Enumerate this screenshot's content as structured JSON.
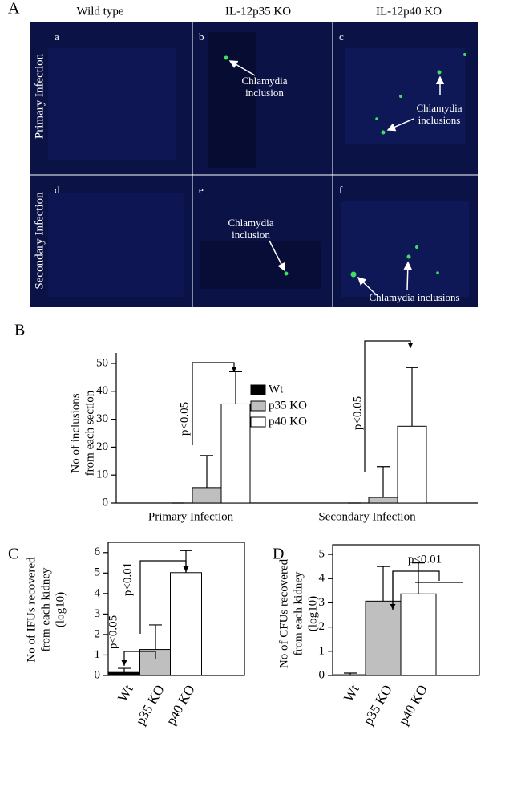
{
  "panel_a": {
    "label": "A",
    "columns": [
      "Wild type",
      "IL-12p35 KO",
      "IL-12p40 KO"
    ],
    "rows": [
      "Primary Infection",
      "Secondary Infection"
    ],
    "cells": [
      "a",
      "b",
      "c",
      "d",
      "e",
      "f"
    ],
    "annotations": [
      [
        "Chlamydia",
        "inclusion"
      ],
      [
        "Chlamydia",
        "inclusions"
      ],
      [
        "Chlamydia",
        "inclusion"
      ],
      [
        "Chlamydia inclusions"
      ]
    ]
  },
  "chart_data": [
    {
      "type": "bar",
      "label": "B",
      "y_label": [
        "No of inclusions",
        "from each section"
      ],
      "categories": [
        "Primary Infection",
        "Secondary Infection"
      ],
      "series": [
        {
          "name": "Wt",
          "color": "#000000",
          "values": [
            0,
            0
          ],
          "errors": [
            0,
            0
          ]
        },
        {
          "name": "p35 KO",
          "color": "#bfbfbf",
          "values": [
            5.5,
            2
          ],
          "errors": [
            11.5,
            11
          ]
        },
        {
          "name": "p40 KO",
          "color": "#ffffff",
          "values": [
            35.5,
            27.5
          ],
          "errors": [
            11.5,
            21
          ]
        }
      ],
      "ylim": [
        0,
        50
      ],
      "yticks": [
        0,
        10,
        20,
        30,
        40,
        50
      ],
      "legend": "top-center",
      "annotations": [
        "p<0.05",
        "p<0.05"
      ]
    },
    {
      "type": "bar",
      "label": "C",
      "y_label": [
        "No of IFUs recovered",
        "from each kidney",
        "(log10)"
      ],
      "categories": [
        "Wt",
        "p35 KO",
        "p40 KO"
      ],
      "values": [
        0.15,
        1.27,
        5.02
      ],
      "errors": [
        0.2,
        1.2,
        1.08
      ],
      "colors": [
        "#000000",
        "#bfbfbf",
        "#ffffff"
      ],
      "ylim": [
        0,
        6.5
      ],
      "yticks": [
        0,
        1,
        2,
        3,
        4,
        5,
        6
      ],
      "annotations": [
        "p<0.05",
        "p<0.01"
      ]
    },
    {
      "type": "bar",
      "label": "D",
      "y_label": [
        "No of CFUs recovered",
        "from each kidney",
        "(log10)"
      ],
      "categories": [
        "Wt",
        "p35 KO",
        "p40 KO"
      ],
      "values": [
        0.03,
        3.07,
        3.37
      ],
      "errors": [
        0.07,
        1.43,
        1.28
      ],
      "colors": [
        "#000000",
        "#bfbfbf",
        "#ffffff"
      ],
      "ylim": [
        0,
        5.4
      ],
      "yticks": [
        0,
        1,
        2,
        3,
        4,
        5
      ],
      "annotations": [
        "p<0.01"
      ]
    }
  ]
}
